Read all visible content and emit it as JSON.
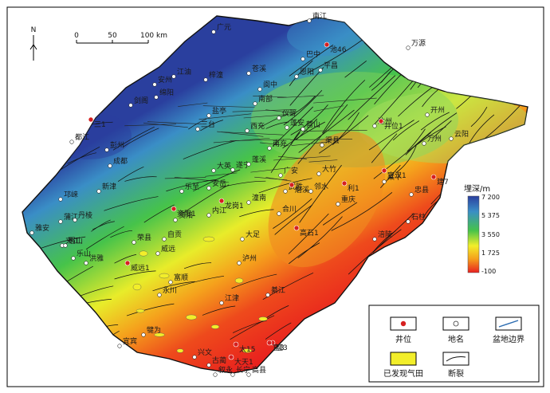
{
  "north_label": "N",
  "scale": {
    "ticks": [
      "0",
      "50",
      "100 km"
    ]
  },
  "colorbar": {
    "title": "埋深/m",
    "ticks": [
      "7 200",
      "5 375",
      "3 550",
      "1 725",
      "-100"
    ],
    "colors": [
      "#2a3f9e",
      "#3a8ec6",
      "#46c34a",
      "#f2ee2a",
      "#f5a01c",
      "#e82020"
    ]
  },
  "legend": {
    "well": "井位",
    "place": "地名",
    "boundary": "盆地边界",
    "gasfield": "已发现气田",
    "fault": "断裂"
  },
  "places": [
    "南江",
    "万源",
    "广元",
    "巴中",
    "恩阳",
    "苍溪",
    "平昌",
    "梓潼",
    "阆中",
    "江油",
    "绵阳",
    "安州",
    "南部",
    "剑阁",
    "彭州",
    "都江",
    "三台",
    "盐亭",
    "西充",
    "仪陇",
    "蓬安",
    "营山",
    "渠县",
    "达州",
    "开州",
    "万州",
    "云阳",
    "遂宁",
    "广安",
    "大竹",
    "梁平",
    "忠县",
    "石柱",
    "南充",
    "武胜",
    "邻水",
    "重庆",
    "涪陵",
    "大英",
    "蓬溪",
    "安岳",
    "潼南",
    "合川",
    "乐至",
    "资阳",
    "内江",
    "自贡",
    "荣县",
    "威远",
    "宜宾",
    "富顺",
    "泸州",
    "永川",
    "大足",
    "江津",
    "綦江",
    "乐山",
    "夹江",
    "眉山",
    "成都",
    "新津",
    "邛崃",
    "雅安",
    "蒲江",
    "丹棱",
    "洪雅",
    "犍为",
    "叙永",
    "古蔺",
    "兴文",
    "长宁",
    "高县"
  ],
  "wells": [
    "龙岗1",
    "磨溪",
    "高石1",
    "座3",
    "宣汉1",
    "建7",
    "资阳1",
    "官3",
    "威远1",
    "太15",
    "井位1",
    "池46",
    "三1",
    "利1",
    "大天1"
  ]
}
